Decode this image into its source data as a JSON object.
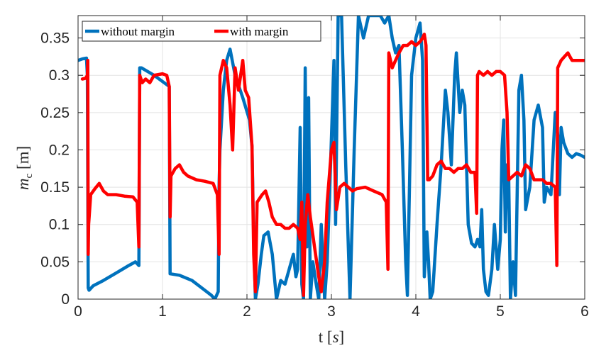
{
  "chart_data": {
    "type": "line",
    "title": "",
    "xlabel": "t [s]",
    "ylabel": "m_c [m]",
    "xlim": [
      0,
      6
    ],
    "ylim": [
      0,
      0.38
    ],
    "x_ticks": [
      0,
      1,
      2,
      3,
      4,
      5,
      6
    ],
    "x_tick_labels": [
      "0",
      "1",
      "2",
      "3",
      "4",
      "5",
      "6"
    ],
    "y_ticks": [
      0,
      0.05,
      0.1,
      0.15,
      0.2,
      0.25,
      0.3,
      0.35
    ],
    "y_tick_labels": [
      "0",
      "0.05",
      "0.1",
      "0.15",
      "0.2",
      "0.25",
      "0.3",
      "0.35"
    ],
    "grid": true,
    "legend_position": "top-left",
    "series": [
      {
        "name": "without margin",
        "color": "#0072BD",
        "points": [
          [
            0.0,
            0.32
          ],
          [
            0.05,
            0.322
          ],
          [
            0.1,
            0.323
          ],
          [
            0.11,
            0.3
          ],
          [
            0.12,
            0.015
          ],
          [
            0.13,
            0.012
          ],
          [
            0.18,
            0.018
          ],
          [
            0.3,
            0.025
          ],
          [
            0.45,
            0.035
          ],
          [
            0.6,
            0.045
          ],
          [
            0.68,
            0.05
          ],
          [
            0.72,
            0.045
          ],
          [
            0.73,
            0.31
          ],
          [
            0.75,
            0.31
          ],
          [
            0.9,
            0.3
          ],
          [
            1.08,
            0.285
          ],
          [
            1.09,
            0.034
          ],
          [
            1.2,
            0.032
          ],
          [
            1.35,
            0.025
          ],
          [
            1.5,
            0.012
          ],
          [
            1.58,
            0.005
          ],
          [
            1.62,
            0.0
          ],
          [
            1.66,
            0.01
          ],
          [
            1.67,
            0.15
          ],
          [
            1.68,
            0.2
          ],
          [
            1.72,
            0.28
          ],
          [
            1.76,
            0.32
          ],
          [
            1.8,
            0.335
          ],
          [
            1.86,
            0.3
          ],
          [
            1.95,
            0.27
          ],
          [
            2.03,
            0.24
          ],
          [
            2.06,
            0.205
          ],
          [
            2.08,
            0.08
          ],
          [
            2.1,
            0.0
          ],
          [
            2.13,
            0.02
          ],
          [
            2.17,
            0.06
          ],
          [
            2.2,
            0.085
          ],
          [
            2.25,
            0.09
          ],
          [
            2.3,
            0.06
          ],
          [
            2.35,
            0.0
          ],
          [
            2.4,
            0.025
          ],
          [
            2.45,
            0.02
          ],
          [
            2.5,
            0.04
          ],
          [
            2.55,
            0.06
          ],
          [
            2.58,
            0.03
          ],
          [
            2.6,
            0.04
          ],
          [
            2.63,
            0.23
          ],
          [
            2.65,
            0.02
          ],
          [
            2.67,
            0.0
          ],
          [
            2.69,
            0.31
          ],
          [
            2.71,
            0.07
          ],
          [
            2.73,
            0.27
          ],
          [
            2.75,
            0.0
          ],
          [
            2.78,
            0.05
          ],
          [
            2.82,
            0.02
          ],
          [
            2.85,
            0.0
          ],
          [
            2.88,
            0.1
          ],
          [
            2.92,
            0.0
          ],
          [
            2.95,
            0.05
          ],
          [
            2.99,
            0.18
          ],
          [
            3.03,
            0.32
          ],
          [
            3.05,
            0.1
          ],
          [
            3.08,
            0.38
          ],
          [
            3.12,
            0.38
          ],
          [
            3.17,
            0.18
          ],
          [
            3.22,
            0.0
          ],
          [
            3.27,
            0.2
          ],
          [
            3.32,
            0.38
          ],
          [
            3.38,
            0.35
          ],
          [
            3.44,
            0.38
          ],
          [
            3.52,
            0.38
          ],
          [
            3.58,
            0.38
          ],
          [
            3.63,
            0.37
          ],
          [
            3.68,
            0.38
          ],
          [
            3.72,
            0.35
          ],
          [
            3.76,
            0.33
          ],
          [
            3.8,
            0.34
          ],
          [
            3.84,
            0.2
          ],
          [
            3.88,
            0.05
          ],
          [
            3.9,
            0.005
          ],
          [
            3.95,
            0.3
          ],
          [
            4.0,
            0.35
          ],
          [
            4.05,
            0.37
          ],
          [
            4.08,
            0.32
          ],
          [
            4.1,
            0.03
          ],
          [
            4.13,
            0.09
          ],
          [
            4.15,
            0.05
          ],
          [
            4.17,
            0.0
          ],
          [
            4.2,
            0.01
          ],
          [
            4.25,
            0.1
          ],
          [
            4.3,
            0.18
          ],
          [
            4.35,
            0.28
          ],
          [
            4.38,
            0.25
          ],
          [
            4.42,
            0.18
          ],
          [
            4.46,
            0.3
          ],
          [
            4.48,
            0.33
          ],
          [
            4.52,
            0.25
          ],
          [
            4.55,
            0.28
          ],
          [
            4.58,
            0.26
          ],
          [
            4.62,
            0.1
          ],
          [
            4.66,
            0.075
          ],
          [
            4.7,
            0.07
          ],
          [
            4.73,
            0.08
          ],
          [
            4.76,
            0.07
          ],
          [
            4.78,
            0.12
          ],
          [
            4.8,
            0.04
          ],
          [
            4.83,
            0.01
          ],
          [
            4.86,
            0.005
          ],
          [
            4.9,
            0.04
          ],
          [
            4.93,
            0.1
          ],
          [
            4.97,
            0.04
          ],
          [
            5.0,
            0.08
          ],
          [
            5.02,
            0.2
          ],
          [
            5.04,
            0.24
          ],
          [
            5.06,
            0.09
          ],
          [
            5.08,
            0.18
          ],
          [
            5.1,
            0.16
          ],
          [
            5.12,
            0.0
          ],
          [
            5.15,
            0.05
          ],
          [
            5.18,
            0.005
          ],
          [
            5.22,
            0.28
          ],
          [
            5.25,
            0.3
          ],
          [
            5.28,
            0.24
          ],
          [
            5.3,
            0.12
          ],
          [
            5.35,
            0.15
          ],
          [
            5.4,
            0.24
          ],
          [
            5.45,
            0.26
          ],
          [
            5.5,
            0.23
          ],
          [
            5.52,
            0.13
          ],
          [
            5.55,
            0.15
          ],
          [
            5.6,
            0.14
          ],
          [
            5.65,
            0.25
          ],
          [
            5.68,
            0.22
          ],
          [
            5.7,
            0.14
          ],
          [
            5.72,
            0.23
          ],
          [
            5.75,
            0.21
          ],
          [
            5.8,
            0.195
          ],
          [
            5.85,
            0.19
          ],
          [
            5.9,
            0.195
          ],
          [
            5.95,
            0.193
          ],
          [
            6.0,
            0.19
          ]
        ]
      },
      {
        "name": "with margin",
        "color": "#FF0000",
        "points": [
          [
            0.05,
            0.295
          ],
          [
            0.09,
            0.296
          ],
          [
            0.11,
            0.3
          ],
          [
            0.115,
            0.32
          ],
          [
            0.12,
            0.06
          ],
          [
            0.125,
            0.1
          ],
          [
            0.15,
            0.14
          ],
          [
            0.2,
            0.148
          ],
          [
            0.25,
            0.155
          ],
          [
            0.3,
            0.145
          ],
          [
            0.35,
            0.14
          ],
          [
            0.45,
            0.14
          ],
          [
            0.55,
            0.138
          ],
          [
            0.65,
            0.137
          ],
          [
            0.7,
            0.13
          ],
          [
            0.72,
            0.07
          ],
          [
            0.73,
            0.3
          ],
          [
            0.76,
            0.29
          ],
          [
            0.8,
            0.295
          ],
          [
            0.85,
            0.29
          ],
          [
            0.9,
            0.3
          ],
          [
            1.0,
            0.302
          ],
          [
            1.05,
            0.3
          ],
          [
            1.08,
            0.285
          ],
          [
            1.09,
            0.11
          ],
          [
            1.1,
            0.165
          ],
          [
            1.15,
            0.175
          ],
          [
            1.2,
            0.18
          ],
          [
            1.25,
            0.17
          ],
          [
            1.3,
            0.165
          ],
          [
            1.4,
            0.16
          ],
          [
            1.5,
            0.158
          ],
          [
            1.6,
            0.155
          ],
          [
            1.65,
            0.14
          ],
          [
            1.67,
            0.06
          ],
          [
            1.68,
            0.3
          ],
          [
            1.72,
            0.32
          ],
          [
            1.76,
            0.31
          ],
          [
            1.8,
            0.26
          ],
          [
            1.83,
            0.2
          ],
          [
            1.86,
            0.31
          ],
          [
            1.9,
            0.28
          ],
          [
            1.95,
            0.32
          ],
          [
            1.98,
            0.28
          ],
          [
            2.02,
            0.27
          ],
          [
            2.06,
            0.205
          ],
          [
            2.08,
            0.06
          ],
          [
            2.1,
            0.01
          ],
          [
            2.12,
            0.13
          ],
          [
            2.18,
            0.14
          ],
          [
            2.22,
            0.145
          ],
          [
            2.26,
            0.13
          ],
          [
            2.3,
            0.11
          ],
          [
            2.35,
            0.1
          ],
          [
            2.4,
            0.1
          ],
          [
            2.45,
            0.095
          ],
          [
            2.5,
            0.095
          ],
          [
            2.55,
            0.1
          ],
          [
            2.6,
            0.095
          ],
          [
            2.63,
            0.08
          ],
          [
            2.65,
            0.13
          ],
          [
            2.67,
            0.005
          ],
          [
            2.69,
            0.1
          ],
          [
            2.72,
            0.14
          ],
          [
            2.75,
            0.11
          ],
          [
            2.8,
            0.07
          ],
          [
            2.85,
            0.03
          ],
          [
            2.88,
            0.01
          ],
          [
            2.92,
            0.05
          ],
          [
            2.95,
            0.13
          ],
          [
            3.0,
            0.2
          ],
          [
            3.03,
            0.21
          ],
          [
            3.06,
            0.12
          ],
          [
            3.1,
            0.15
          ],
          [
            3.15,
            0.155
          ],
          [
            3.2,
            0.15
          ],
          [
            3.25,
            0.145
          ],
          [
            3.3,
            0.148
          ],
          [
            3.4,
            0.15
          ],
          [
            3.5,
            0.145
          ],
          [
            3.6,
            0.14
          ],
          [
            3.65,
            0.13
          ],
          [
            3.67,
            0.04
          ],
          [
            3.68,
            0.33
          ],
          [
            3.72,
            0.31
          ],
          [
            3.76,
            0.32
          ],
          [
            3.8,
            0.33
          ],
          [
            3.85,
            0.34
          ],
          [
            3.9,
            0.34
          ],
          [
            3.95,
            0.345
          ],
          [
            4.0,
            0.34
          ],
          [
            4.05,
            0.345
          ],
          [
            4.08,
            0.35
          ],
          [
            4.1,
            0.355
          ],
          [
            4.12,
            0.34
          ],
          [
            4.14,
            0.16
          ],
          [
            4.16,
            0.16
          ],
          [
            4.2,
            0.165
          ],
          [
            4.25,
            0.18
          ],
          [
            4.3,
            0.185
          ],
          [
            4.35,
            0.175
          ],
          [
            4.4,
            0.175
          ],
          [
            4.45,
            0.17
          ],
          [
            4.5,
            0.175
          ],
          [
            4.55,
            0.175
          ],
          [
            4.6,
            0.18
          ],
          [
            4.65,
            0.17
          ],
          [
            4.7,
            0.17
          ],
          [
            4.72,
            0.115
          ],
          [
            4.73,
            0.3
          ],
          [
            4.75,
            0.305
          ],
          [
            4.8,
            0.3
          ],
          [
            4.85,
            0.305
          ],
          [
            4.9,
            0.3
          ],
          [
            4.95,
            0.305
          ],
          [
            5.0,
            0.305
          ],
          [
            5.05,
            0.3
          ],
          [
            5.08,
            0.25
          ],
          [
            5.1,
            0.16
          ],
          [
            5.15,
            0.165
          ],
          [
            5.2,
            0.17
          ],
          [
            5.25,
            0.165
          ],
          [
            5.3,
            0.18
          ],
          [
            5.35,
            0.175
          ],
          [
            5.4,
            0.16
          ],
          [
            5.45,
            0.16
          ],
          [
            5.5,
            0.16
          ],
          [
            5.55,
            0.155
          ],
          [
            5.6,
            0.155
          ],
          [
            5.65,
            0.15
          ],
          [
            5.67,
            0.045
          ],
          [
            5.68,
            0.31
          ],
          [
            5.72,
            0.32
          ],
          [
            5.76,
            0.325
          ],
          [
            5.8,
            0.33
          ],
          [
            5.85,
            0.32
          ],
          [
            5.9,
            0.32
          ],
          [
            5.95,
            0.32
          ],
          [
            6.0,
            0.32
          ]
        ]
      }
    ]
  }
}
